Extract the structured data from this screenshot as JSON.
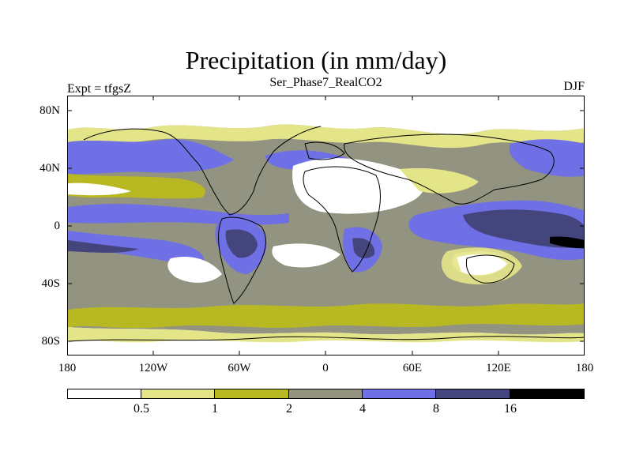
{
  "title": "Precipitation (in mm/day)",
  "left_string": "Expt = tfgsZ",
  "center_string": "Ser_Phase7_RealCO2",
  "right_string": "DJF",
  "y_ticks": [
    {
      "label": "80N",
      "lat": 80
    },
    {
      "label": "40N",
      "lat": 40
    },
    {
      "label": "0",
      "lat": 0
    },
    {
      "label": "40S",
      "lat": -40
    },
    {
      "label": "80S",
      "lat": -80
    }
  ],
  "x_ticks": [
    {
      "label": "180",
      "lon": -180
    },
    {
      "label": "120W",
      "lon": -120
    },
    {
      "label": "60W",
      "lon": -60
    },
    {
      "label": "0",
      "lon": 0
    },
    {
      "label": "60E",
      "lon": 60
    },
    {
      "label": "120E",
      "lon": 120
    },
    {
      "label": "180",
      "lon": 180
    }
  ],
  "colorbar": {
    "levels": [
      "0.5",
      "1",
      "2",
      "4",
      "8",
      "16"
    ],
    "colors": [
      "#ffffff",
      "#e4e489",
      "#b8b822",
      "#939381",
      "#6f6fe6",
      "#45457e",
      "#000000"
    ]
  },
  "map_colors": {
    "very_light": "#ffffff",
    "light": "#e4e489",
    "olive": "#b8b822",
    "gray": "#939381",
    "blue": "#6f6fe6",
    "navy": "#45457e",
    "black": "#000000"
  }
}
